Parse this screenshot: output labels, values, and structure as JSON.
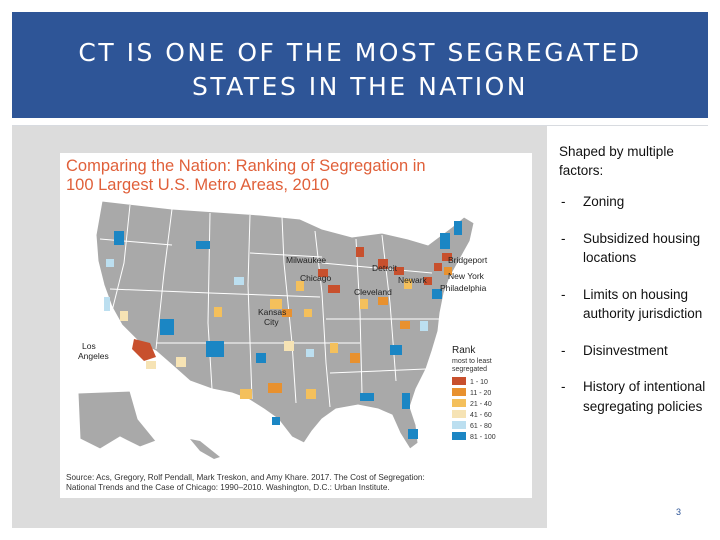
{
  "slide": {
    "title_line1": "CT IS ONE OF THE MOST SEGREGATED",
    "title_line2": "STATES IN THE NATION",
    "page_number": "3"
  },
  "figure": {
    "title_line1": "Comparing the Nation: Ranking of Segregation in",
    "title_line2": "100 Largest U.S. Metro Areas, 2010",
    "source_line1": "Source: Acs, Gregory, Rolf Pendall, Mark Treskon, and Amy Khare. 2017. The Cost of Segregation:",
    "source_line2": "National Trends and the Case of Chicago: 1990–2010. Washington, D.C.: Urban Institute.",
    "city_labels": {
      "milwaukee": "Milwaukee",
      "chicago": "Chicago",
      "detroit": "Detroit",
      "cleveland": "Cleveland",
      "newark": "Newark",
      "bridgeport": "Bridgeport",
      "new_york": "New York",
      "philadelphia": "Philadelphia",
      "kansas_city_1": "Kansas",
      "kansas_city_2": "City",
      "los_angeles_1": "Los",
      "los_angeles_2": "Angeles"
    },
    "legend": {
      "title": "Rank",
      "subtitle_1": "most to least",
      "subtitle_2": "segregated",
      "items": [
        {
          "label": "1 - 10",
          "color": "#c8502d"
        },
        {
          "label": "11 - 20",
          "color": "#e8912f"
        },
        {
          "label": "21 - 40",
          "color": "#f4c05c"
        },
        {
          "label": "41 - 60",
          "color": "#f6e3b4"
        },
        {
          "label": "61 - 80",
          "color": "#bcdff0"
        },
        {
          "label": "81 - 100",
          "color": "#1b86c4"
        }
      ]
    }
  },
  "factors": {
    "intro": "Shaped by multiple factors:",
    "items": [
      {
        "dash": "-",
        "text": "Zoning"
      },
      {
        "dash": "-",
        "text": "Subsidized housing locations"
      },
      {
        "dash": "-",
        "text": "Limits on housing authority jurisdiction"
      },
      {
        "dash": "-",
        "text": "Disinvestment"
      },
      {
        "dash": "-",
        "text": "History of intentional segregating policies"
      }
    ]
  },
  "colors": {
    "title_bar": "#2E5597",
    "map_base": "#a9a9a9",
    "state_border": "#ffffff",
    "figure_title": "#e0603a"
  }
}
